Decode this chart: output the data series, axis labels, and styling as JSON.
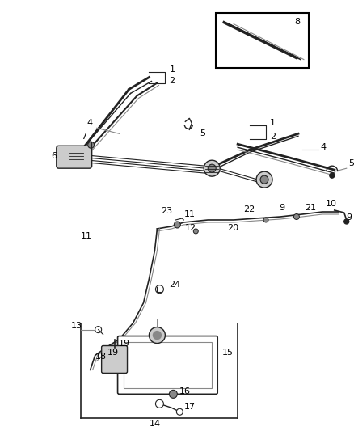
{
  "bg_color": "#ffffff",
  "fig_width": 4.38,
  "fig_height": 5.33,
  "dpi": 100,
  "line_color": "#444444",
  "dark_color": "#222222",
  "gray_color": "#888888",
  "light_gray": "#cccccc"
}
